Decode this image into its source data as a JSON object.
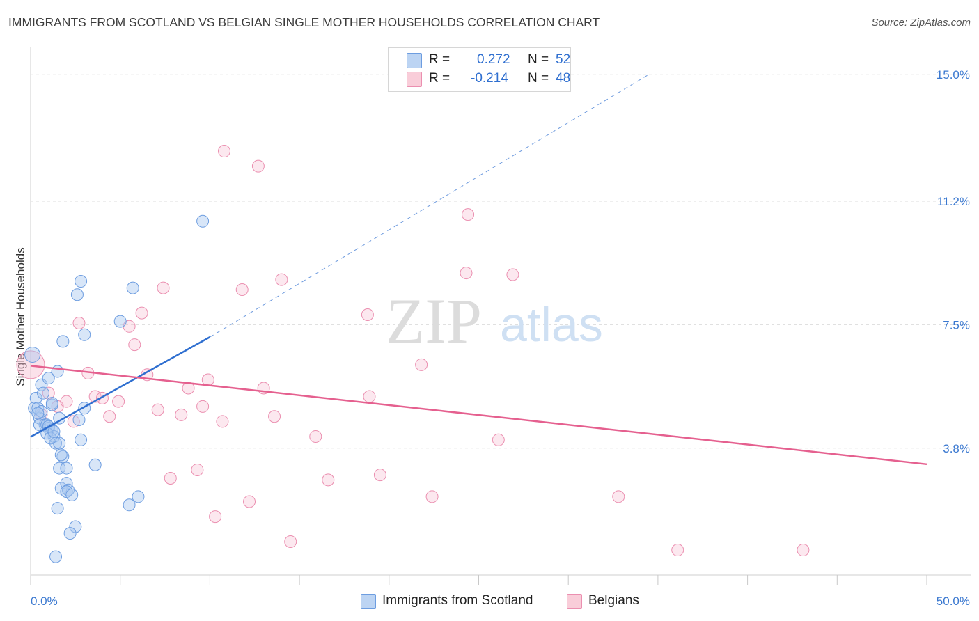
{
  "title": "IMMIGRANTS FROM SCOTLAND VS BELGIAN SINGLE MOTHER HOUSEHOLDS CORRELATION CHART",
  "source_label": "Source: ZipAtlas.com",
  "watermark": {
    "zip": "ZIP",
    "atlas": "atlas"
  },
  "legend": {
    "rows": [
      {
        "r_label": "R =",
        "r_value": "0.272",
        "n_label": "N =",
        "n_value": "52"
      },
      {
        "r_label": "R =",
        "r_value": "-0.214",
        "n_label": "N =",
        "n_value": "48"
      }
    ]
  },
  "colors": {
    "scotland_fill": "#a9c8f0",
    "scotland_stroke": "#6d9de0",
    "scotland_line": "#2f6fd0",
    "belgian_fill": "#f7bcd0",
    "belgian_stroke": "#eb8fb0",
    "belgian_line": "#e5608f",
    "tick_label": "#3a78d0",
    "grid": "#dcdcdc"
  },
  "chart_data": {
    "type": "scatter",
    "title": "IMMIGRANTS FROM SCOTLAND VS BELGIAN SINGLE MOTHER HOUSEHOLDS CORRELATION CHART",
    "xlabel": "",
    "ylabel": "Single Mother Households",
    "xlim": [
      0,
      50
    ],
    "ylim": [
      0,
      15.6
    ],
    "x_tick_labels": [
      "0.0%",
      "50.0%"
    ],
    "y_ticks": [
      3.8,
      7.5,
      11.2,
      15.0
    ],
    "y_tick_labels": [
      "3.8%",
      "7.5%",
      "11.2%",
      "15.0%"
    ],
    "grid": true,
    "legend_position": "top-center",
    "series": [
      {
        "name": "Immigrants from Scotland",
        "r": 0.272,
        "n": 52,
        "trend": {
          "x": [
            0.0,
            10.0
          ],
          "y": [
            4.14,
            7.13
          ],
          "dashed_to": [
            34.5,
            15.0
          ]
        },
        "points": [
          [
            0.1,
            6.6
          ],
          [
            0.3,
            5.3
          ],
          [
            0.2,
            5.0
          ],
          [
            0.5,
            4.7
          ],
          [
            0.4,
            5.0
          ],
          [
            0.6,
            4.9
          ],
          [
            0.8,
            4.5
          ],
          [
            0.5,
            4.5
          ],
          [
            1.0,
            4.4
          ],
          [
            0.9,
            4.5
          ],
          [
            1.2,
            4.35
          ],
          [
            1.0,
            4.45
          ],
          [
            1.3,
            4.15
          ],
          [
            1.4,
            3.95
          ],
          [
            1.6,
            3.95
          ],
          [
            1.2,
            5.1
          ],
          [
            0.6,
            5.7
          ],
          [
            0.7,
            5.45
          ],
          [
            1.0,
            5.9
          ],
          [
            1.2,
            5.15
          ],
          [
            1.5,
            6.1
          ],
          [
            1.8,
            3.55
          ],
          [
            1.7,
            3.6
          ],
          [
            1.6,
            3.2
          ],
          [
            2.0,
            3.2
          ],
          [
            1.7,
            2.6
          ],
          [
            2.0,
            2.75
          ],
          [
            2.1,
            2.55
          ],
          [
            2.0,
            2.5
          ],
          [
            2.3,
            2.4
          ],
          [
            1.5,
            2.0
          ],
          [
            2.5,
            1.45
          ],
          [
            2.2,
            1.25
          ],
          [
            1.4,
            0.55
          ],
          [
            2.7,
            4.65
          ],
          [
            3.0,
            5.0
          ],
          [
            2.8,
            4.05
          ],
          [
            3.6,
            3.3
          ],
          [
            2.6,
            8.4
          ],
          [
            2.8,
            8.8
          ],
          [
            3.0,
            7.2
          ],
          [
            1.8,
            7.0
          ],
          [
            5.7,
            8.6
          ],
          [
            5.0,
            7.6
          ],
          [
            6.0,
            2.35
          ],
          [
            5.5,
            2.1
          ],
          [
            9.6,
            10.6
          ],
          [
            1.6,
            4.7
          ],
          [
            0.9,
            4.25
          ],
          [
            1.1,
            4.1
          ],
          [
            0.4,
            4.85
          ],
          [
            1.3,
            4.3
          ]
        ]
      },
      {
        "name": "Belgians",
        "r": -0.214,
        "n": 48,
        "trend": {
          "x": [
            0.0,
            50.0
          ],
          "y": [
            6.27,
            3.32
          ]
        },
        "points": [
          [
            0.0,
            6.3
          ],
          [
            0.6,
            4.8
          ],
          [
            1.0,
            5.45
          ],
          [
            1.5,
            5.05
          ],
          [
            2.0,
            5.2
          ],
          [
            2.4,
            4.6
          ],
          [
            2.7,
            7.55
          ],
          [
            3.2,
            6.05
          ],
          [
            3.6,
            5.35
          ],
          [
            4.0,
            5.3
          ],
          [
            4.4,
            4.75
          ],
          [
            4.9,
            5.2
          ],
          [
            5.5,
            7.45
          ],
          [
            5.8,
            6.9
          ],
          [
            6.2,
            7.85
          ],
          [
            6.5,
            6.0
          ],
          [
            7.1,
            4.95
          ],
          [
            7.4,
            8.6
          ],
          [
            7.8,
            2.9
          ],
          [
            8.4,
            4.8
          ],
          [
            8.8,
            5.6
          ],
          [
            9.3,
            3.15
          ],
          [
            9.6,
            5.05
          ],
          [
            9.9,
            5.85
          ],
          [
            10.3,
            1.75
          ],
          [
            10.7,
            4.6
          ],
          [
            10.8,
            12.7
          ],
          [
            11.8,
            8.55
          ],
          [
            12.2,
            2.2
          ],
          [
            12.7,
            12.25
          ],
          [
            13.0,
            5.6
          ],
          [
            13.6,
            4.75
          ],
          [
            14.0,
            8.85
          ],
          [
            14.5,
            1.0
          ],
          [
            15.9,
            4.15
          ],
          [
            16.6,
            2.85
          ],
          [
            18.8,
            7.8
          ],
          [
            18.9,
            5.35
          ],
          [
            19.5,
            3.0
          ],
          [
            21.8,
            6.3
          ],
          [
            22.4,
            2.35
          ],
          [
            24.3,
            9.05
          ],
          [
            24.4,
            10.8
          ],
          [
            26.1,
            4.05
          ],
          [
            26.9,
            9.0
          ],
          [
            32.8,
            2.35
          ],
          [
            36.1,
            0.75
          ],
          [
            43.1,
            0.75
          ]
        ]
      }
    ]
  },
  "bottom_legend": {
    "items": [
      {
        "label": "Immigrants from Scotland"
      },
      {
        "label": "Belgians"
      }
    ]
  }
}
